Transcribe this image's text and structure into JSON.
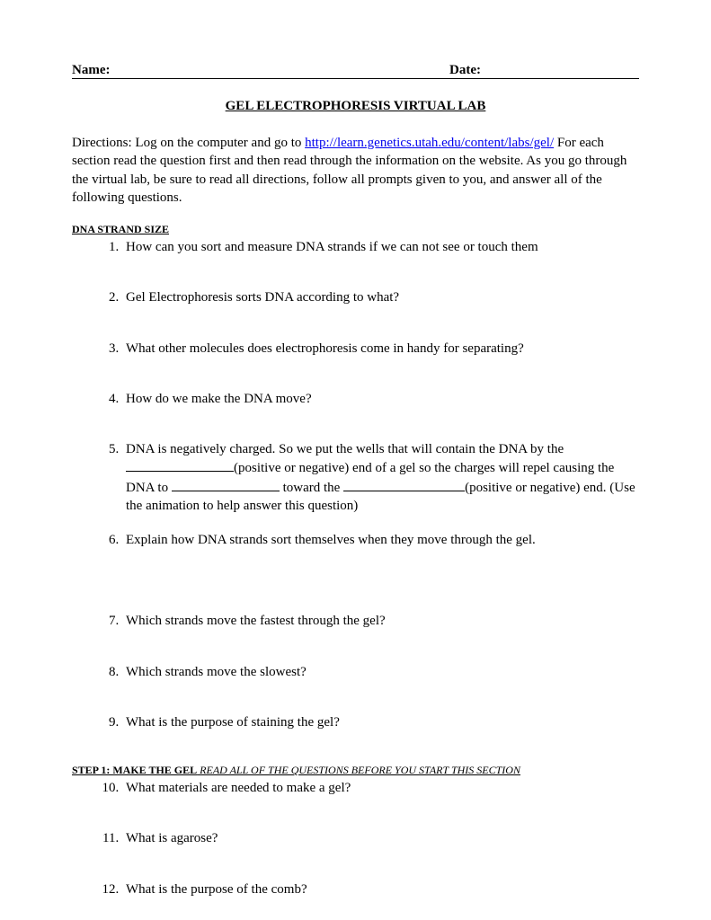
{
  "header": {
    "name_label": "Name:",
    "date_label": "Date:"
  },
  "title": "GEL ELECTROPHORESIS VIRTUAL LAB",
  "directions": {
    "prefix": "Directions:  Log on the computer and go to ",
    "link_text": "http://learn.genetics.utah.edu/content/labs/gel/",
    "link_href": "http://learn.genetics.utah.edu/content/labs/gel/",
    "rest": "For each section read the question first and then read through the information on the website.  As you go through the virtual lab, be sure to read all directions, follow all prompts given to you, and answer all of the following questions."
  },
  "section1": {
    "heading": "DNA STRAND SIZE"
  },
  "section2": {
    "heading": "STEP 1: MAKE THE GEL",
    "tail": "   READ ALL OF THE QUESTIONS BEFORE YOU START THIS SECTION"
  },
  "questions": {
    "q1": "How can you sort and measure DNA strands if we can not see or touch them",
    "q2": "Gel Electrophoresis sorts DNA according to what?",
    "q3": "What other molecules does electrophoresis come in handy for separating?",
    "q4": " How do we make the DNA move?",
    "q5_a": "DNA is negatively charged.  So we put the wells that will contain the DNA by the ",
    "q5_b": "(positive or negative) end of a gel so the charges will repel causing the DNA to ",
    "q5_c": " toward the ",
    "q5_d": "(positive or negative) end.  (Use the animation to help answer this question)",
    "q6": "Explain how DNA strands sort themselves when they move through the gel.",
    "q7": "Which strands move the fastest through the gel?",
    "q8": "Which strands move the slowest?",
    "q9": "What is the purpose of staining the gel?",
    "q10": "What materials are needed to make a gel?",
    "q11": "What is agarose?",
    "q12": "What is the purpose of the comb?"
  }
}
